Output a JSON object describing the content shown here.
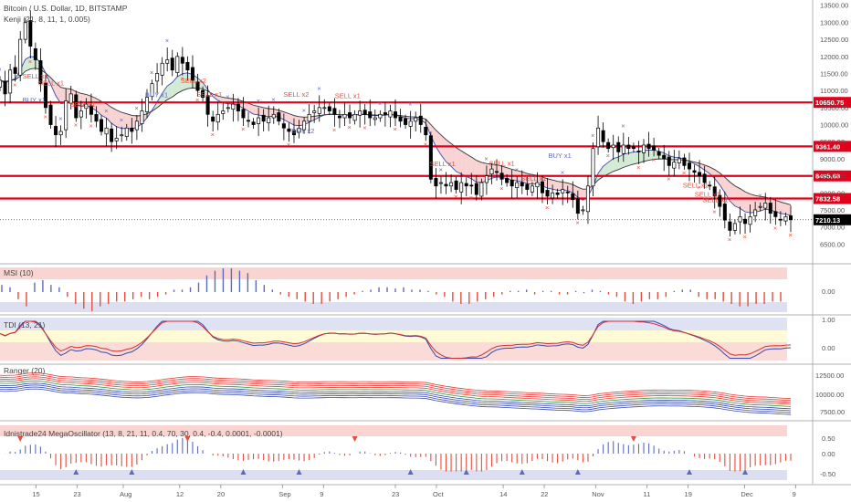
{
  "chart_data": [
    {
      "pane": "price",
      "type": "candlestick",
      "title": "Bitcoin / U.S. Dollar, 1D, BITSTAMP",
      "subtitle": "Kenji (21, 8, 11, 1, 0.005)",
      "y_ticks": [
        "13500.00",
        "13000.00",
        "12500.00",
        "12000.00",
        "11500.00",
        "11000.00",
        "10500.00",
        "10000.00",
        "9500.00",
        "9000.00",
        "8500.00",
        "8000.00",
        "7500.00",
        "7000.00",
        "6500.00"
      ],
      "y_tick_values": [
        13500,
        13000,
        12500,
        12000,
        11500,
        11000,
        10500,
        10000,
        9500,
        9000,
        8500,
        8000,
        7500,
        7000,
        6500
      ],
      "ylim": [
        6000,
        13600
      ],
      "x_tick_labels": [
        "15",
        "23",
        "Aug",
        "12",
        "20",
        "Sep",
        "9",
        "23",
        "Oct",
        "14",
        "22",
        "Nov",
        "11",
        "19",
        "Dec",
        "9"
      ],
      "x_tick_days": [
        15,
        23,
        32,
        43,
        51,
        63,
        71,
        85,
        93,
        106,
        114,
        124,
        134,
        142,
        153,
        163
      ],
      "support_resistance": [
        {
          "value": 10650.75,
          "label": "10650.75",
          "color": "#e3001b"
        },
        {
          "value": 9361.4,
          "label": "9361.40",
          "color": "#e3001b"
        },
        {
          "value": 8495.68,
          "label": "8495.68",
          "color": "#e3001b"
        },
        {
          "value": 7832.58,
          "label": "7832.58",
          "color": "#e3001b"
        }
      ],
      "last_price": {
        "value": 7210.13,
        "label": "7210.13",
        "color": "#000000"
      },
      "closes": [
        11300,
        10900,
        11600,
        11500,
        12500,
        13000,
        12300,
        11900,
        11200,
        10500,
        10000,
        9700,
        9800,
        10700,
        10900,
        10200,
        10400,
        10600,
        10300,
        10100,
        9800,
        9900,
        9500,
        9600,
        9700,
        9900,
        9800,
        10100,
        10400,
        10800,
        11200,
        11500,
        11800,
        11900,
        11600,
        12000,
        11800,
        11600,
        11300,
        11000,
        10800,
        10300,
        10100,
        10300,
        10400,
        10500,
        10600,
        10400,
        10200,
        10100,
        10000,
        10200,
        10100,
        10200,
        10300,
        10100,
        9900,
        9800,
        9700,
        9900,
        10100,
        10300,
        10400,
        10500,
        10500,
        10400,
        10300,
        10200,
        10300,
        10200,
        10300,
        10400,
        10300,
        10200,
        10200,
        10300,
        10300,
        10400,
        10200,
        10100,
        10000,
        10100,
        10200,
        10000,
        9700,
        8400,
        8200,
        8300,
        8200,
        8300,
        8100,
        8300,
        8200,
        8200,
        7950,
        8300,
        8500,
        8700,
        8600,
        8400,
        8300,
        8200,
        8300,
        8200,
        8100,
        8200,
        8300,
        8000,
        7900,
        8000,
        7950,
        8100,
        8000,
        7800,
        7400,
        7500,
        8200,
        9300,
        9900,
        9500,
        9300,
        9400,
        9200,
        9400,
        9300,
        9300,
        9200,
        9400,
        9300,
        9250,
        9100,
        9000,
        8800,
        8900,
        9000,
        8800,
        8700,
        8600,
        8500,
        8300,
        8200,
        7900,
        7600,
        7200,
        6900,
        7100,
        7300,
        7100,
        7300,
        7500,
        7600,
        7700,
        7400,
        7300,
        7200,
        7300,
        7210
      ],
      "highs_lows_note": "derived visually",
      "signals": [
        {
          "text": "SELL x1",
          "day": 14,
          "price": 11350,
          "color": "#e74c3c"
        },
        {
          "text": "SELL x1",
          "day": 18,
          "price": 11150,
          "color": "#e74c3c"
        },
        {
          "text": "BUY x1",
          "day": 14,
          "price": 10650,
          "color": "#5b6bc0"
        },
        {
          "text": "SELL x1",
          "day": 26,
          "price": 10520,
          "color": "#e74c3c"
        },
        {
          "text": "BUY x1",
          "day": 45,
          "price": 10800,
          "color": "#5b6bc0"
        },
        {
          "text": "SELL x2",
          "day": 54,
          "price": 11220,
          "color": "#e74c3c"
        },
        {
          "text": "SELL x1",
          "day": 58,
          "price": 10820,
          "color": "#e74c3c"
        },
        {
          "text": "SELL x2",
          "day": 80,
          "price": 10820,
          "color": "#e74c3c"
        },
        {
          "text": "BUY x2",
          "day": 82,
          "price": 9750,
          "color": "#5b6bc0"
        },
        {
          "text": "SELL x1",
          "day": 93,
          "price": 10780,
          "color": "#e74c3c"
        },
        {
          "text": "SELL x1",
          "day": 117,
          "price": 8780,
          "color": "#e74c3c"
        },
        {
          "text": "SELL x1",
          "day": 132,
          "price": 8800,
          "color": "#e74c3c"
        },
        {
          "text": "SELL x1",
          "day": 140,
          "price": 8350,
          "color": "#e74c3c"
        },
        {
          "text": "BUY x1",
          "day": 147,
          "price": 9020,
          "color": "#5b6bc0"
        },
        {
          "text": "SELL x1",
          "day": 181,
          "price": 8150,
          "color": "#e74c3c"
        },
        {
          "text": "SELL x1",
          "day": 184,
          "price": 7880,
          "color": "#e74c3c"
        },
        {
          "text": "SELL x1",
          "day": 186,
          "price": 7730,
          "color": "#e74c3c"
        }
      ]
    },
    {
      "pane": "msi",
      "type": "histogram",
      "title": "MSI (10)",
      "y_ticks": [
        "0.00"
      ],
      "values": [
        0.3,
        0.2,
        -0.3,
        -0.6,
        0.4,
        0.5,
        0.3,
        0.2,
        -0.2,
        -0.5,
        -0.7,
        -0.8,
        -0.6,
        -0.5,
        -0.4,
        -0.4,
        -0.3,
        -0.2,
        -0.3,
        -0.2,
        -0.1,
        0.1,
        0.1,
        0.2,
        0.4,
        0.7,
        0.9,
        1.0,
        1.0,
        0.9,
        0.8,
        0.5,
        0.3,
        0.1,
        -0.1,
        -0.2,
        -0.3,
        -0.4,
        -0.5,
        -0.5,
        -0.4,
        -0.3,
        -0.2,
        -0.1,
        0.05,
        0.1,
        0.2,
        0.2,
        0.15,
        0.2,
        0.1,
        0.1,
        0.05,
        -0.1,
        -0.2,
        -0.4,
        -0.5,
        -0.5,
        -0.4,
        -0.3,
        -0.2,
        -0.1,
        0.05,
        0.05,
        0.1,
        -0.1,
        0.05,
        0.05,
        -0.1,
        -0.1,
        0.05,
        -0.05,
        0.1,
        0.05,
        -0.1,
        -0.2,
        -0.4,
        -0.5,
        -0.4,
        -0.3,
        -0.3,
        -0.2,
        0.05,
        0.1,
        0.1,
        -0.2,
        -0.3,
        -0.3,
        -0.4,
        -0.5,
        -0.6,
        -0.6,
        -0.5,
        -0.5,
        -0.4,
        -0.4
      ]
    },
    {
      "pane": "tdi",
      "type": "line",
      "title": "TDI (13, 21)",
      "y_ticks": [
        "1.00",
        "0.00"
      ],
      "ylim": [
        -0.4,
        1.1
      ]
    },
    {
      "pane": "ranger",
      "type": "line",
      "title": "Ranger (20)",
      "y_ticks": [
        "12500.00",
        "10000.00",
        "7500.00"
      ],
      "ylim": [
        6000,
        14000
      ]
    },
    {
      "pane": "mega",
      "type": "histogram",
      "title": "Idnistrade24 MegaOscillator (13, 8, 21, 11, 0.4, 70, 30, 0.4, -0.4, 0.0001, -0.0001)",
      "y_ticks": [
        "0.50",
        "0.00",
        "-0.50"
      ],
      "ylim": [
        -0.75,
        0.75
      ]
    }
  ],
  "colors": {
    "up_candle": "#ffffff",
    "down_candle": "#000000",
    "sr_line": "#e3001b",
    "buy": "#5b6bc0",
    "sell": "#e74c3c",
    "cloud_bull": "#c8e6c9",
    "cloud_bear": "#f8c8c8",
    "band_top": "#f5b7b1",
    "band_bottom": "#c5cae9"
  }
}
